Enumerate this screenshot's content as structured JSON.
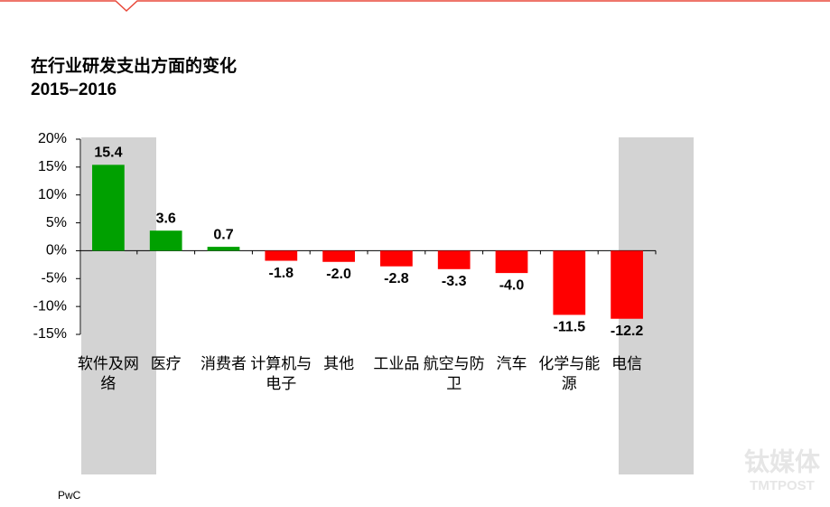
{
  "chart_data": {
    "type": "bar",
    "title": "在行业研发支出方面的变化",
    "subtitle": "2015–2016",
    "source": "PwC",
    "watermark": "钛媒体",
    "watermark_sub": "TMTPOST",
    "categories": [
      "软件及网络",
      "医疗",
      "消费者",
      "计算机与电子",
      "其他",
      "工业品",
      "航空与防卫",
      "汽车",
      "化学与能源",
      "电信"
    ],
    "values": [
      15.4,
      3.6,
      0.7,
      -1.8,
      -2.0,
      -2.8,
      -3.3,
      -4.0,
      -11.5,
      -12.2
    ],
    "value_labels": [
      "15.4",
      "3.6",
      "0.7",
      "-1.8",
      "-2.0",
      "-2.8",
      "-3.3",
      "-4.0",
      "-11.5",
      "-12.2"
    ],
    "colors": [
      "#00a000",
      "#00a000",
      "#00a000",
      "#ff0000",
      "#ff0000",
      "#ff0000",
      "#ff0000",
      "#ff0000",
      "#ff0000",
      "#ff0000"
    ],
    "ylim": [
      -15,
      20
    ],
    "yticks": [
      {
        "value": -15,
        "label": "-15%"
      },
      {
        "value": -10,
        "label": "-10%"
      },
      {
        "value": -5,
        "label": "-5%"
      },
      {
        "value": 0,
        "label": "0%"
      },
      {
        "value": 5,
        "label": "5%"
      },
      {
        "value": 10,
        "label": "10%"
      },
      {
        "value": 15,
        "label": "15%"
      },
      {
        "value": 20,
        "label": "20%"
      }
    ]
  }
}
